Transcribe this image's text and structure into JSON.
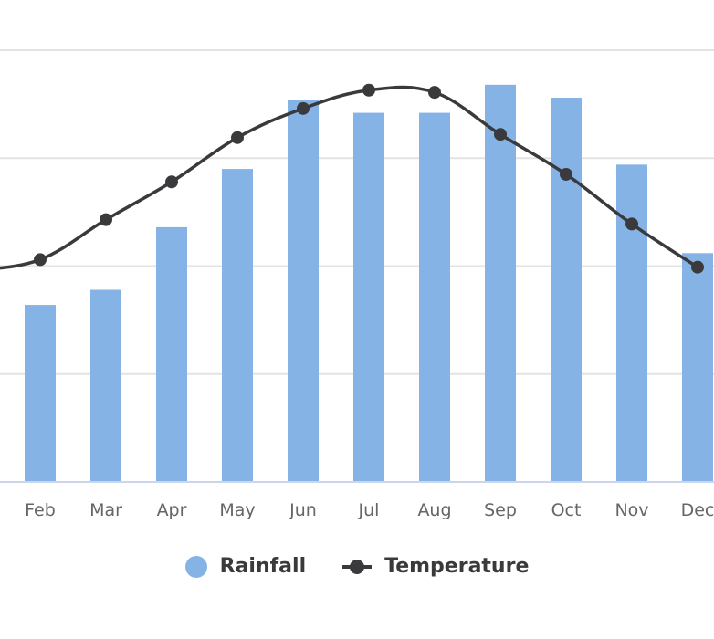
{
  "chart_data": {
    "type": "bar+line",
    "title": "",
    "xlabel": "",
    "ylabel": "",
    "categories": [
      "Feb",
      "Mar",
      "Apr",
      "May",
      "Jun",
      "Jul",
      "Aug",
      "Sep",
      "Oct",
      "Nov",
      "Dec"
    ],
    "series": [
      {
        "name": "Rainfall",
        "type": "bar",
        "color": "#86b3e5",
        "values": [
          82,
          89,
          118,
          145,
          177,
          171,
          171,
          184,
          178,
          147,
          106
        ]
      },
      {
        "name": "Temperature",
        "type": "line",
        "color": "#3a3a3c",
        "values": [
          20.6,
          24.3,
          27.8,
          31.9,
          34.6,
          36.3,
          36.1,
          32.2,
          28.5,
          23.9,
          19.9
        ]
      }
    ],
    "rainfall_ylim": [
      0,
      200
    ],
    "temperature_ylim": [
      0,
      40
    ],
    "gridlines": true,
    "legend_position": "bottom-center",
    "colors": {
      "grid": "#e3e3e3",
      "axis": "#ccd6eb",
      "tick_text": "#666666"
    }
  },
  "legend": {
    "items": [
      {
        "label": "Rainfall",
        "icon": "circle-swatch-icon"
      },
      {
        "label": "Temperature",
        "icon": "line-marker-swatch-icon"
      }
    ]
  }
}
